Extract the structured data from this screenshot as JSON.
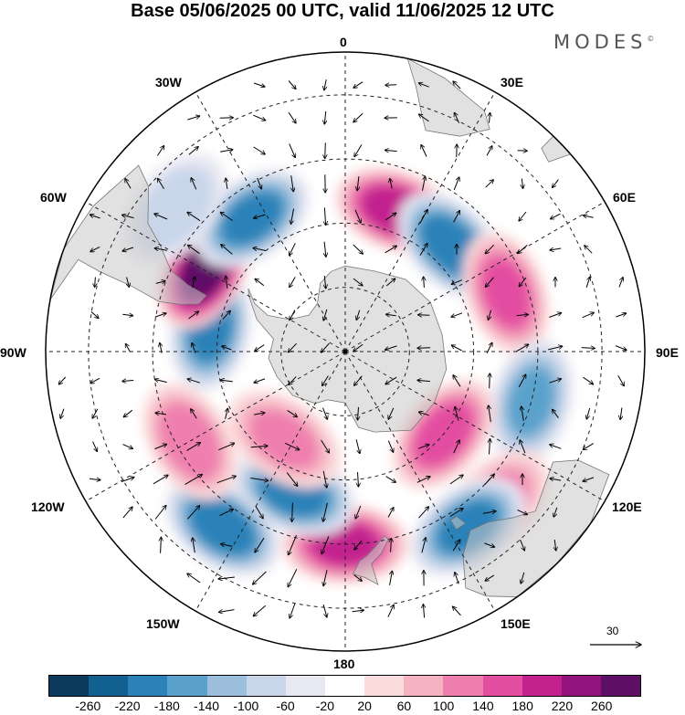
{
  "title": "Base 05/06/2025 00 UTC, valid 11/06/2025 12 UTC",
  "brand": {
    "text": "MODES",
    "mark": "©"
  },
  "longitude_labels": {
    "lon_0": "0",
    "lon_30e": "30E",
    "lon_60e": "60E",
    "lon_90e": "90E",
    "lon_120e": "120E",
    "lon_150e": "150E",
    "lon_180": "180",
    "lon_150w": "150W",
    "lon_120w": "120W",
    "lon_90w": "90W",
    "lon_60w": "60W",
    "lon_30w": "30W"
  },
  "reference_vector": {
    "value": "30"
  },
  "colorbar": {
    "colors": [
      "#0b3a5c",
      "#12608f",
      "#2a82b8",
      "#5aa2cc",
      "#9bbfdc",
      "#c9d6ea",
      "#e8e8f2",
      "#ffffff",
      "#fbdcdc",
      "#f5b3c2",
      "#ef7fae",
      "#e34ea1",
      "#c2218e",
      "#93137c",
      "#5f0f66"
    ],
    "ticks": [
      "-260",
      "-220",
      "-180",
      "-140",
      "-100",
      "-60",
      "-20",
      "20",
      "60",
      "100",
      "140",
      "180",
      "220",
      "260"
    ]
  },
  "anomaly_centers": [
    {
      "lon": 20,
      "lat": -55,
      "value": 200
    },
    {
      "lon": 45,
      "lat": -55,
      "value": -200
    },
    {
      "lon": 70,
      "lat": -50,
      "value": 140
    },
    {
      "lon": 105,
      "lat": -45,
      "value": -140
    },
    {
      "lon": 135,
      "lat": -40,
      "value": 100
    },
    {
      "lon": 130,
      "lat": -60,
      "value": 150
    },
    {
      "lon": 145,
      "lat": -40,
      "value": -180
    },
    {
      "lon": 180,
      "lat": -45,
      "value": 180
    },
    {
      "lon": -160,
      "lat": -55,
      "value": -190
    },
    {
      "lon": -145,
      "lat": -40,
      "value": -200
    },
    {
      "lon": -120,
      "lat": -48,
      "value": 120
    },
    {
      "lon": -145,
      "lat": -65,
      "value": 100
    },
    {
      "lon": -80,
      "lat": -58,
      "value": -180
    },
    {
      "lon": -60,
      "lat": -52,
      "value": 260
    },
    {
      "lon": -35,
      "lat": -52,
      "value": -180
    },
    {
      "lon": -50,
      "lat": -38,
      "value": -80
    }
  ]
}
